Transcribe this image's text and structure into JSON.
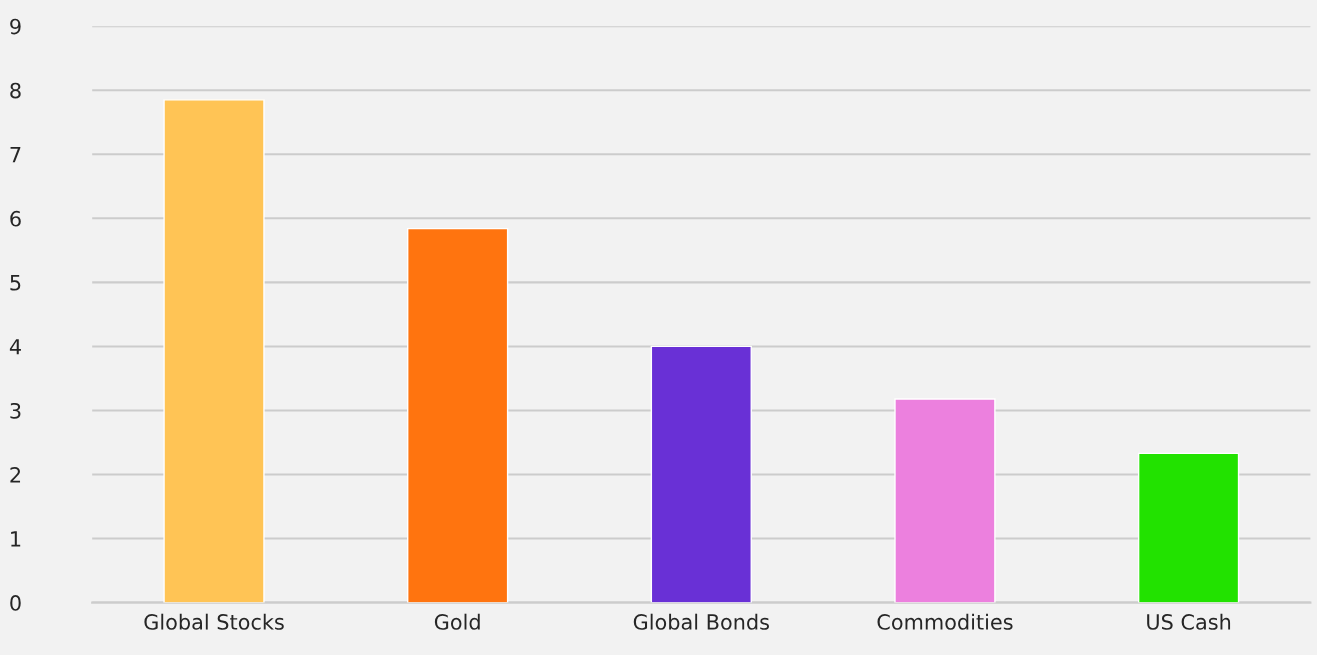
{
  "chart_data": {
    "type": "bar",
    "categories": [
      "Global Stocks",
      "Gold",
      "Global Bonds",
      "Commodities",
      "US Cash"
    ],
    "values": [
      7.85,
      5.84,
      4.0,
      3.18,
      2.33
    ],
    "colors": [
      "#ffc455",
      "#ff740f",
      "#6930d6",
      "#ec80de",
      "#22e200"
    ],
    "ylim": [
      0,
      9
    ],
    "yticks": [
      0,
      1,
      2,
      3,
      4,
      5,
      6,
      7,
      8,
      9
    ],
    "grid": "y",
    "legend": false
  }
}
